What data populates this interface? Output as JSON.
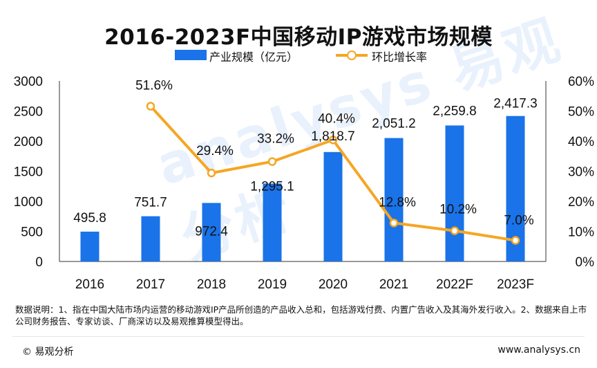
{
  "title": "2016-2023F中国移动IP游戏市场规模",
  "legend": {
    "bar_label": "产业规模（亿元）",
    "line_label": "环比增长率"
  },
  "watermark": "analysys 易观分析",
  "note": "数据说明：1、指在中国大陆市场内运营的移动游戏IP产品所创造的产品收入总和，包括游戏付费、内置广告收入及其海外发行收入。2、数据来自上市公司财务报告、专家访谈、厂商深访以及易观推算模型得出。",
  "footer": {
    "left": "© 易观分析",
    "right": "www.analysys.cn"
  },
  "colors": {
    "bar": "#1a73e8",
    "line": "#f5a623"
  },
  "chart_data": {
    "type": "bar",
    "categories": [
      "2016",
      "2017",
      "2018",
      "2019",
      "2020",
      "2021",
      "2022F",
      "2023F"
    ],
    "series": [
      {
        "name": "产业规模（亿元）",
        "type": "bar",
        "axis": "left",
        "values": [
          495.8,
          751.7,
          972.4,
          1295.1,
          1818.7,
          2051.2,
          2259.8,
          2417.3
        ],
        "labels": [
          "495.8",
          "751.7",
          "972.4",
          "1,295.1",
          "1,818.7",
          "2,051.2",
          "2,259.8",
          "2,417.3"
        ]
      },
      {
        "name": "环比增长率",
        "type": "line",
        "axis": "right",
        "values": [
          null,
          51.6,
          29.4,
          33.2,
          40.4,
          12.8,
          10.2,
          7.0
        ],
        "labels": [
          "",
          "51.6%",
          "29.4%",
          "33.2%",
          "40.4%",
          "12.8%",
          "10.2%",
          "7.0%"
        ]
      }
    ],
    "y_left": {
      "ylim": [
        0,
        3000
      ],
      "ticks": [
        "0",
        "500",
        "1000",
        "1500",
        "2000",
        "2500",
        "3000"
      ]
    },
    "y_right": {
      "ylim": [
        0,
        60
      ],
      "ticks": [
        "0%",
        "10%",
        "20%",
        "30%",
        "40%",
        "50%",
        "60%"
      ]
    },
    "grid": false,
    "legend_position": "top-center"
  }
}
